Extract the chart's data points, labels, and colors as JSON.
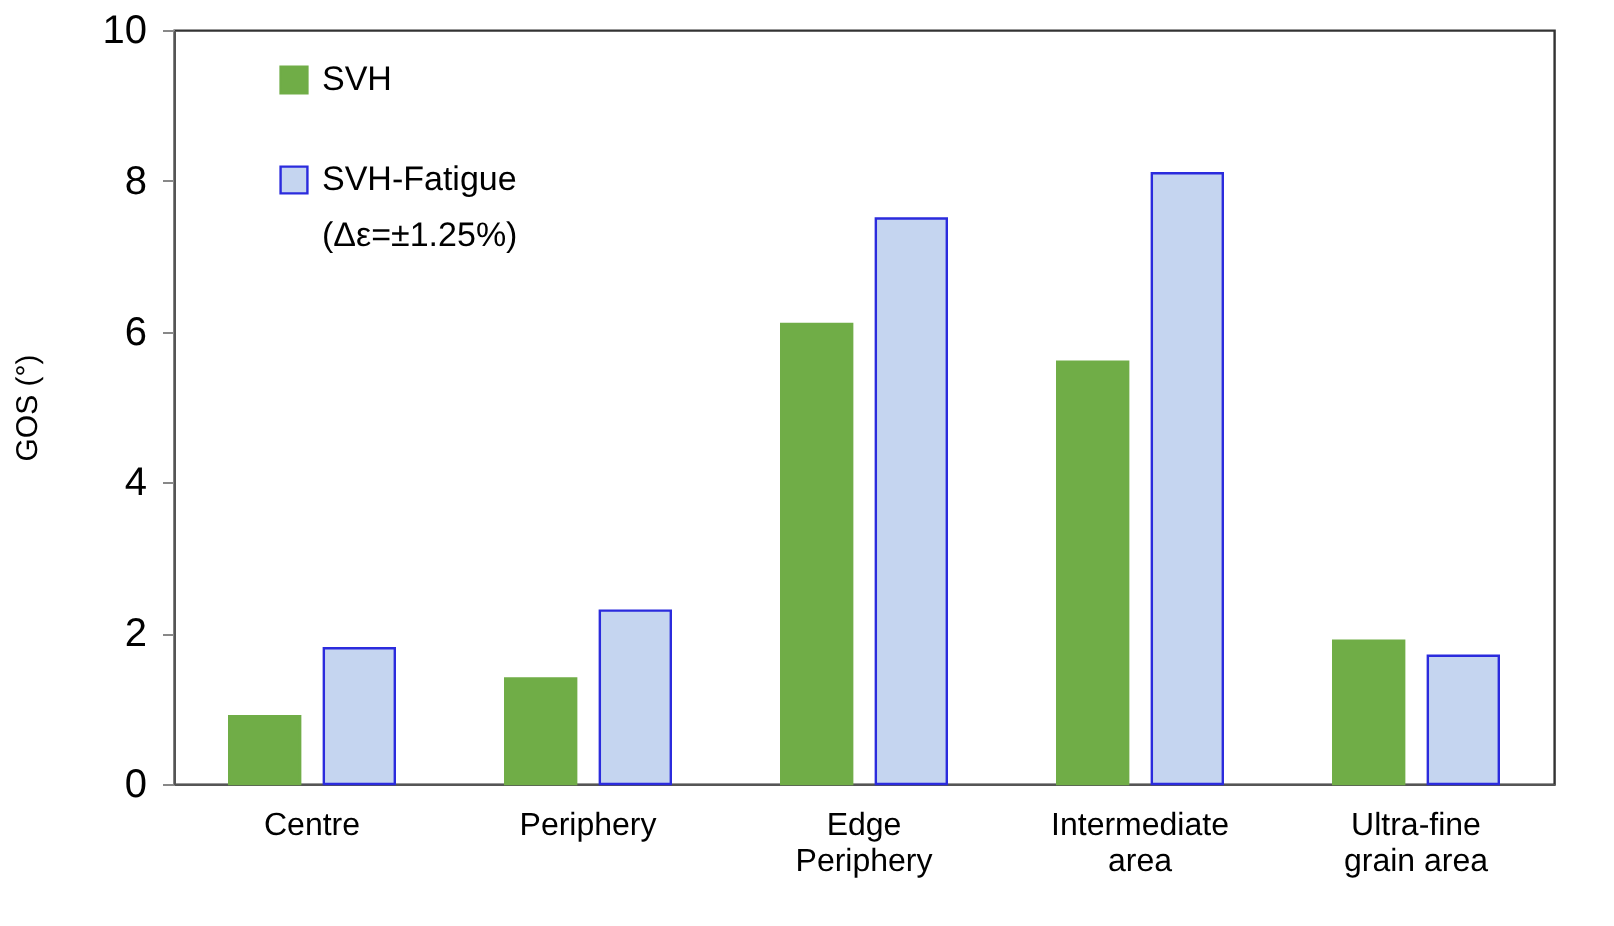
{
  "chart_data": {
    "type": "bar",
    "ylabel": "GOS (°)",
    "categories": [
      "Centre",
      "Periphery",
      "Edge\nPeriphery",
      "Intermediate\narea",
      "Ultra-fine\ngrain area"
    ],
    "series": [
      {
        "name": "SVH",
        "color": "#70ad47",
        "values": [
          0.9,
          1.4,
          6.1,
          5.6,
          1.9
        ]
      },
      {
        "name": "SVH-Fatigue\n(Δε=±1.25%)",
        "color": "#c5d5f0",
        "values": [
          1.8,
          2.3,
          7.5,
          8.1,
          1.7
        ]
      }
    ],
    "ylim": [
      0,
      10
    ],
    "yticks": [
      0,
      2,
      4,
      6,
      8,
      10
    ],
    "grid": false,
    "legend": "top left"
  }
}
